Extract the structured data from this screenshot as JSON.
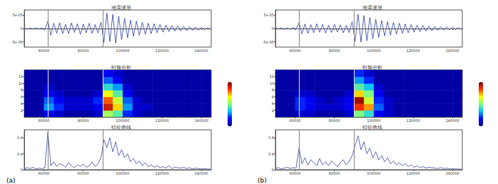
{
  "chart_data": [
    {
      "type": "line",
      "title": "地震波形",
      "color": "#2b3f9e",
      "x": [
        50000,
        51500,
        53000,
        54500,
        56000,
        57500,
        59000,
        60500,
        62000,
        63500,
        65000,
        66500,
        68000,
        69500,
        71000,
        72500,
        74000,
        75500,
        77000,
        78500,
        80000,
        81500,
        83000,
        84500,
        86000,
        87500,
        89000,
        90500,
        92000,
        93500,
        95000,
        96500,
        98000,
        99500,
        101000,
        102500,
        104000,
        105500,
        107000,
        108500,
        110000,
        111500,
        113000,
        114500,
        116000,
        117500,
        119000,
        120500,
        122000,
        123500,
        125000,
        126500,
        128000,
        129500,
        131000,
        132500,
        134000,
        135500,
        137000,
        138500,
        140000,
        141500,
        143000,
        144500
      ],
      "values": [
        2e-06,
        -3e-06,
        2e-06,
        -2e-06,
        3e-06,
        -2e-06,
        2e-06,
        -3e-06,
        2.8e-05,
        -2.5e-05,
        2e-05,
        -1.8e-05,
        2.2e-05,
        -2e-05,
        1.6e-05,
        -1.9e-05,
        2.1e-05,
        -1.5e-05,
        1.8e-05,
        -2.2e-05,
        1.7e-05,
        -1.6e-05,
        2e-05,
        -1.8e-05,
        1.5e-05,
        -1.7e-05,
        2.4e-05,
        -5.2e-05,
        5.8e-05,
        -4.9e-05,
        5.3e-05,
        -5.5e-05,
        4.6e-05,
        -4.2e-05,
        3.8e-05,
        -3.5e-05,
        3.2e-05,
        -2.9e-05,
        2.8e-05,
        -2.6e-05,
        2.4e-05,
        -2.2e-05,
        2e-05,
        -1.9e-05,
        1.8e-05,
        -1.6e-05,
        1.5e-05,
        -1.4e-05,
        1.3e-05,
        -1.2e-05,
        1.1e-05,
        -1e-05,
        1e-05,
        -9e-06,
        8e-06,
        -8e-06,
        7e-06,
        -7e-06,
        6e-06,
        -6e-06,
        5e-06,
        -5e-06,
        4e-06,
        -4e-06
      ],
      "xlim": [
        50000,
        145000
      ],
      "xticks": [
        60000,
        80000,
        100000,
        120000,
        140000
      ],
      "ylim": [
        -7e-05,
        7e-05
      ],
      "yticks": [
        {
          "value": -5e-05,
          "label": "-5e-05"
        },
        0,
        {
          "value": 5e-05,
          "label": "5e-05"
        }
      ],
      "picks": [
        62000,
        90000
      ]
    },
    {
      "type": "heatmap",
      "title": "时频分析",
      "x_edges": [
        50000,
        55000,
        60000,
        65000,
        70000,
        75000,
        80000,
        85000,
        90000,
        95000,
        100000,
        105000,
        110000,
        115000,
        120000,
        125000,
        130000,
        135000,
        140000,
        145000
      ],
      "y_edges": [
        0,
        2,
        4,
        6,
        8,
        10,
        12,
        14
      ],
      "cells": [
        [
          0.05,
          0.05,
          0.15,
          0.1,
          0.05,
          0.05,
          0.05,
          0.1,
          0.55,
          0.45,
          0.2,
          0.1,
          0.05,
          0.05,
          0.05,
          0.05,
          0.05,
          0.05,
          0.05
        ],
        [
          0.05,
          0.05,
          0.3,
          0.2,
          0.1,
          0.1,
          0.1,
          0.15,
          0.9,
          0.7,
          0.3,
          0.1,
          0.1,
          0.05,
          0.05,
          0.05,
          0.05,
          0.05,
          0.05
        ],
        [
          0.05,
          0.05,
          0.25,
          0.15,
          0.1,
          0.1,
          0.1,
          0.2,
          0.8,
          0.6,
          0.25,
          0.1,
          0.05,
          0.05,
          0.05,
          0.05,
          0.05,
          0.05,
          0.05
        ],
        [
          0.05,
          0.05,
          0.15,
          0.1,
          0.05,
          0.05,
          0.05,
          0.1,
          0.65,
          0.45,
          0.15,
          0.05,
          0.05,
          0.05,
          0.05,
          0.05,
          0.05,
          0.05,
          0.05
        ],
        [
          0.05,
          0.05,
          0.1,
          0.05,
          0.05,
          0.05,
          0.05,
          0.05,
          0.4,
          0.3,
          0.1,
          0.05,
          0.05,
          0.05,
          0.05,
          0.05,
          0.05,
          0.05,
          0.05
        ],
        [
          0.05,
          0.05,
          0.05,
          0.05,
          0.05,
          0.05,
          0.05,
          0.05,
          0.25,
          0.15,
          0.05,
          0.05,
          0.05,
          0.05,
          0.05,
          0.05,
          0.05,
          0.05,
          0.05
        ],
        [
          0.05,
          0.05,
          0.05,
          0.05,
          0.05,
          0.05,
          0.05,
          0.05,
          0.15,
          0.1,
          0.05,
          0.05,
          0.05,
          0.05,
          0.05,
          0.05,
          0.05,
          0.05,
          0.05
        ]
      ],
      "colorbar": {
        "range": [
          0,
          1
        ]
      },
      "xlim": [
        50000,
        145000
      ],
      "xticks": [
        60000,
        80000,
        100000,
        120000,
        140000
      ],
      "ylim": [
        0,
        14
      ],
      "yticks": [
        2,
        4,
        6,
        8,
        10,
        12
      ],
      "picks": [
        62000,
        90000
      ]
    },
    {
      "type": "line",
      "title": "特征曲线",
      "color": "#3b4a9a",
      "annotation": "(a)",
      "x": [
        50000,
        51500,
        53000,
        54500,
        56000,
        57500,
        59000,
        60500,
        62000,
        63500,
        65000,
        66500,
        68000,
        69500,
        71000,
        72500,
        74000,
        75500,
        77000,
        78500,
        80000,
        81500,
        83000,
        84500,
        86000,
        87500,
        89000,
        90500,
        92000,
        93500,
        95000,
        96500,
        98000,
        99500,
        101000,
        102500,
        104000,
        105500,
        107000,
        108500,
        110000,
        111500,
        113000,
        114500,
        116000,
        117500,
        119000,
        120500,
        122000,
        123500,
        125000,
        126500,
        128000,
        129500,
        131000,
        132500,
        134000,
        135500,
        137000,
        138500,
        140000,
        141500,
        143000,
        144500
      ],
      "values": [
        0.02,
        0.05,
        0.03,
        0.06,
        0.02,
        0.04,
        0.03,
        0.05,
        0.95,
        0.1,
        0.2,
        0.08,
        0.15,
        0.12,
        0.06,
        0.18,
        0.1,
        0.05,
        0.12,
        0.08,
        0.14,
        0.06,
        0.1,
        0.2,
        0.08,
        0.15,
        0.3,
        0.75,
        0.55,
        0.8,
        0.45,
        0.7,
        0.35,
        0.5,
        0.3,
        0.4,
        0.2,
        0.28,
        0.15,
        0.22,
        0.1,
        0.18,
        0.08,
        0.12,
        0.06,
        0.1,
        0.05,
        0.08,
        0.04,
        0.1,
        0.03,
        0.06,
        0.05,
        0.04,
        0.06,
        0.03,
        0.05,
        0.02,
        0.04,
        0.03,
        0.02,
        0.03,
        0.02,
        0.02
      ],
      "xlim": [
        50000,
        145000
      ],
      "xticks": [
        60000,
        80000,
        100000,
        120000,
        140000
      ],
      "ylim": [
        0,
        1
      ],
      "yticks": [
        0,
        0.4,
        0.8
      ],
      "picks": [
        62000,
        90000
      ]
    },
    {
      "type": "line",
      "title": "地震波形",
      "color": "#2b3f9e",
      "x": [
        50000,
        51500,
        53000,
        54500,
        56000,
        57500,
        59000,
        60500,
        62000,
        63500,
        65000,
        66500,
        68000,
        69500,
        71000,
        72500,
        74000,
        75500,
        77000,
        78500,
        80000,
        81500,
        83000,
        84500,
        86000,
        87500,
        89000,
        90500,
        92000,
        93500,
        95000,
        96500,
        98000,
        99500,
        101000,
        102500,
        104000,
        105500,
        107000,
        108500,
        110000,
        111500,
        113000,
        114500,
        116000,
        117500,
        119000,
        120500,
        122000,
        123500,
        125000,
        126500,
        128000,
        129500,
        131000,
        132500,
        134000,
        135500,
        137000,
        138500,
        140000,
        141500,
        143000,
        144500
      ],
      "values": [
        3e-06,
        -2e-06,
        3e-06,
        -3e-06,
        2e-06,
        -3e-06,
        3e-06,
        -2e-06,
        2.2e-05,
        -2e-05,
        1.7e-05,
        -1.9e-05,
        1.5e-05,
        -1.6e-05,
        1.8e-05,
        -1.4e-05,
        1.6e-05,
        -1.7e-05,
        1.3e-05,
        -1.5e-05,
        1.6e-05,
        -1.3e-05,
        1.4e-05,
        -1.6e-05,
        1.2e-05,
        -1.5e-05,
        2.6e-05,
        -4.8e-05,
        5.4e-05,
        -5.1e-05,
        4.9e-05,
        -4.6e-05,
        4.2e-05,
        -3.9e-05,
        3.5e-05,
        -3.3e-05,
        3e-05,
        -2.8e-05,
        2.6e-05,
        -2.5e-05,
        2.3e-05,
        -2.1e-05,
        2e-05,
        -1.8e-05,
        1.7e-05,
        -1.6e-05,
        1.5e-05,
        -1.4e-05,
        1.3e-05,
        -1.2e-05,
        1.1e-05,
        -1e-05,
        9e-06,
        -9e-06,
        8e-06,
        -7e-06,
        7e-06,
        -6e-06,
        6e-06,
        -5e-06,
        5e-06,
        -4e-06,
        4e-06,
        -3e-06
      ],
      "xlim": [
        50000,
        145000
      ],
      "xticks": [
        60000,
        80000,
        100000,
        120000,
        140000
      ],
      "ylim": [
        -7e-05,
        7e-05
      ],
      "yticks": [
        {
          "value": -5e-05,
          "label": "-5e-05"
        },
        0,
        {
          "value": 5e-05,
          "label": "5e-05"
        }
      ],
      "picks": [
        62000,
        90000
      ]
    },
    {
      "type": "heatmap",
      "title": "时频分析",
      "x_edges": [
        50000,
        55000,
        60000,
        65000,
        70000,
        75000,
        80000,
        85000,
        90000,
        95000,
        100000,
        105000,
        110000,
        115000,
        120000,
        125000,
        130000,
        135000,
        140000,
        145000
      ],
      "y_edges": [
        0,
        2,
        4,
        6,
        8,
        10,
        12,
        14
      ],
      "cells": [
        [
          0.05,
          0.05,
          0.1,
          0.1,
          0.05,
          0.05,
          0.05,
          0.1,
          0.5,
          0.4,
          0.15,
          0.1,
          0.05,
          0.05,
          0.05,
          0.05,
          0.05,
          0.05,
          0.05
        ],
        [
          0.05,
          0.05,
          0.2,
          0.15,
          0.1,
          0.1,
          0.1,
          0.15,
          0.85,
          0.75,
          0.25,
          0.1,
          0.05,
          0.05,
          0.05,
          0.05,
          0.05,
          0.05,
          0.05
        ],
        [
          0.05,
          0.05,
          0.2,
          0.15,
          0.1,
          0.05,
          0.1,
          0.15,
          0.95,
          0.6,
          0.2,
          0.1,
          0.05,
          0.05,
          0.05,
          0.05,
          0.05,
          0.05,
          0.05
        ],
        [
          0.05,
          0.05,
          0.1,
          0.1,
          0.05,
          0.05,
          0.05,
          0.1,
          0.7,
          0.5,
          0.15,
          0.05,
          0.05,
          0.05,
          0.05,
          0.05,
          0.05,
          0.05,
          0.05
        ],
        [
          0.05,
          0.05,
          0.05,
          0.05,
          0.05,
          0.05,
          0.05,
          0.05,
          0.45,
          0.35,
          0.1,
          0.05,
          0.05,
          0.05,
          0.05,
          0.05,
          0.05,
          0.05,
          0.05
        ],
        [
          0.05,
          0.05,
          0.05,
          0.05,
          0.05,
          0.05,
          0.05,
          0.05,
          0.3,
          0.2,
          0.05,
          0.05,
          0.05,
          0.05,
          0.05,
          0.05,
          0.05,
          0.05,
          0.05
        ],
        [
          0.05,
          0.05,
          0.05,
          0.05,
          0.05,
          0.05,
          0.05,
          0.05,
          0.2,
          0.1,
          0.05,
          0.05,
          0.05,
          0.05,
          0.05,
          0.05,
          0.05,
          0.05,
          0.05
        ]
      ],
      "colorbar": {
        "range": [
          0,
          1
        ]
      },
      "xlim": [
        50000,
        145000
      ],
      "xticks": [
        60000,
        80000,
        100000,
        120000,
        140000
      ],
      "ylim": [
        0,
        14
      ],
      "yticks": [
        2,
        4,
        6,
        8,
        10,
        12
      ],
      "picks": [
        62000,
        90000
      ]
    },
    {
      "type": "line",
      "title": "特征曲线",
      "color": "#3b4a9a",
      "annotation": "(b)",
      "x": [
        50000,
        51500,
        53000,
        54500,
        56000,
        57500,
        59000,
        60500,
        62000,
        63500,
        65000,
        66500,
        68000,
        69500,
        71000,
        72500,
        74000,
        75500,
        77000,
        78500,
        80000,
        81500,
        83000,
        84500,
        86000,
        87500,
        89000,
        90500,
        92000,
        93500,
        95000,
        96500,
        98000,
        99500,
        101000,
        102500,
        104000,
        105500,
        107000,
        108500,
        110000,
        111500,
        113000,
        114500,
        116000,
        117500,
        119000,
        120500,
        122000,
        123500,
        125000,
        126500,
        128000,
        129500,
        131000,
        132500,
        134000,
        135500,
        137000,
        138500,
        140000,
        141500,
        143000,
        144500
      ],
      "values": [
        0.03,
        0.05,
        0.02,
        0.04,
        0.06,
        0.03,
        0.05,
        0.04,
        0.55,
        0.15,
        0.3,
        0.12,
        0.25,
        0.18,
        0.1,
        0.28,
        0.12,
        0.2,
        0.1,
        0.22,
        0.15,
        0.08,
        0.18,
        0.25,
        0.12,
        0.2,
        0.35,
        0.6,
        0.85,
        0.5,
        0.7,
        0.4,
        0.55,
        0.3,
        0.45,
        0.25,
        0.35,
        0.2,
        0.3,
        0.15,
        0.22,
        0.12,
        0.18,
        0.1,
        0.15,
        0.08,
        0.12,
        0.06,
        0.1,
        0.05,
        0.08,
        0.04,
        0.06,
        0.05,
        0.04,
        0.03,
        0.05,
        0.03,
        0.04,
        0.02,
        0.03,
        0.02,
        0.02,
        0.02
      ],
      "xlim": [
        50000,
        145000
      ],
      "xticks": [
        60000,
        80000,
        100000,
        120000,
        140000
      ],
      "ylim": [
        0,
        1
      ],
      "yticks": [
        0,
        0.4,
        0.8
      ],
      "picks": [
        62000,
        90000
      ]
    }
  ]
}
